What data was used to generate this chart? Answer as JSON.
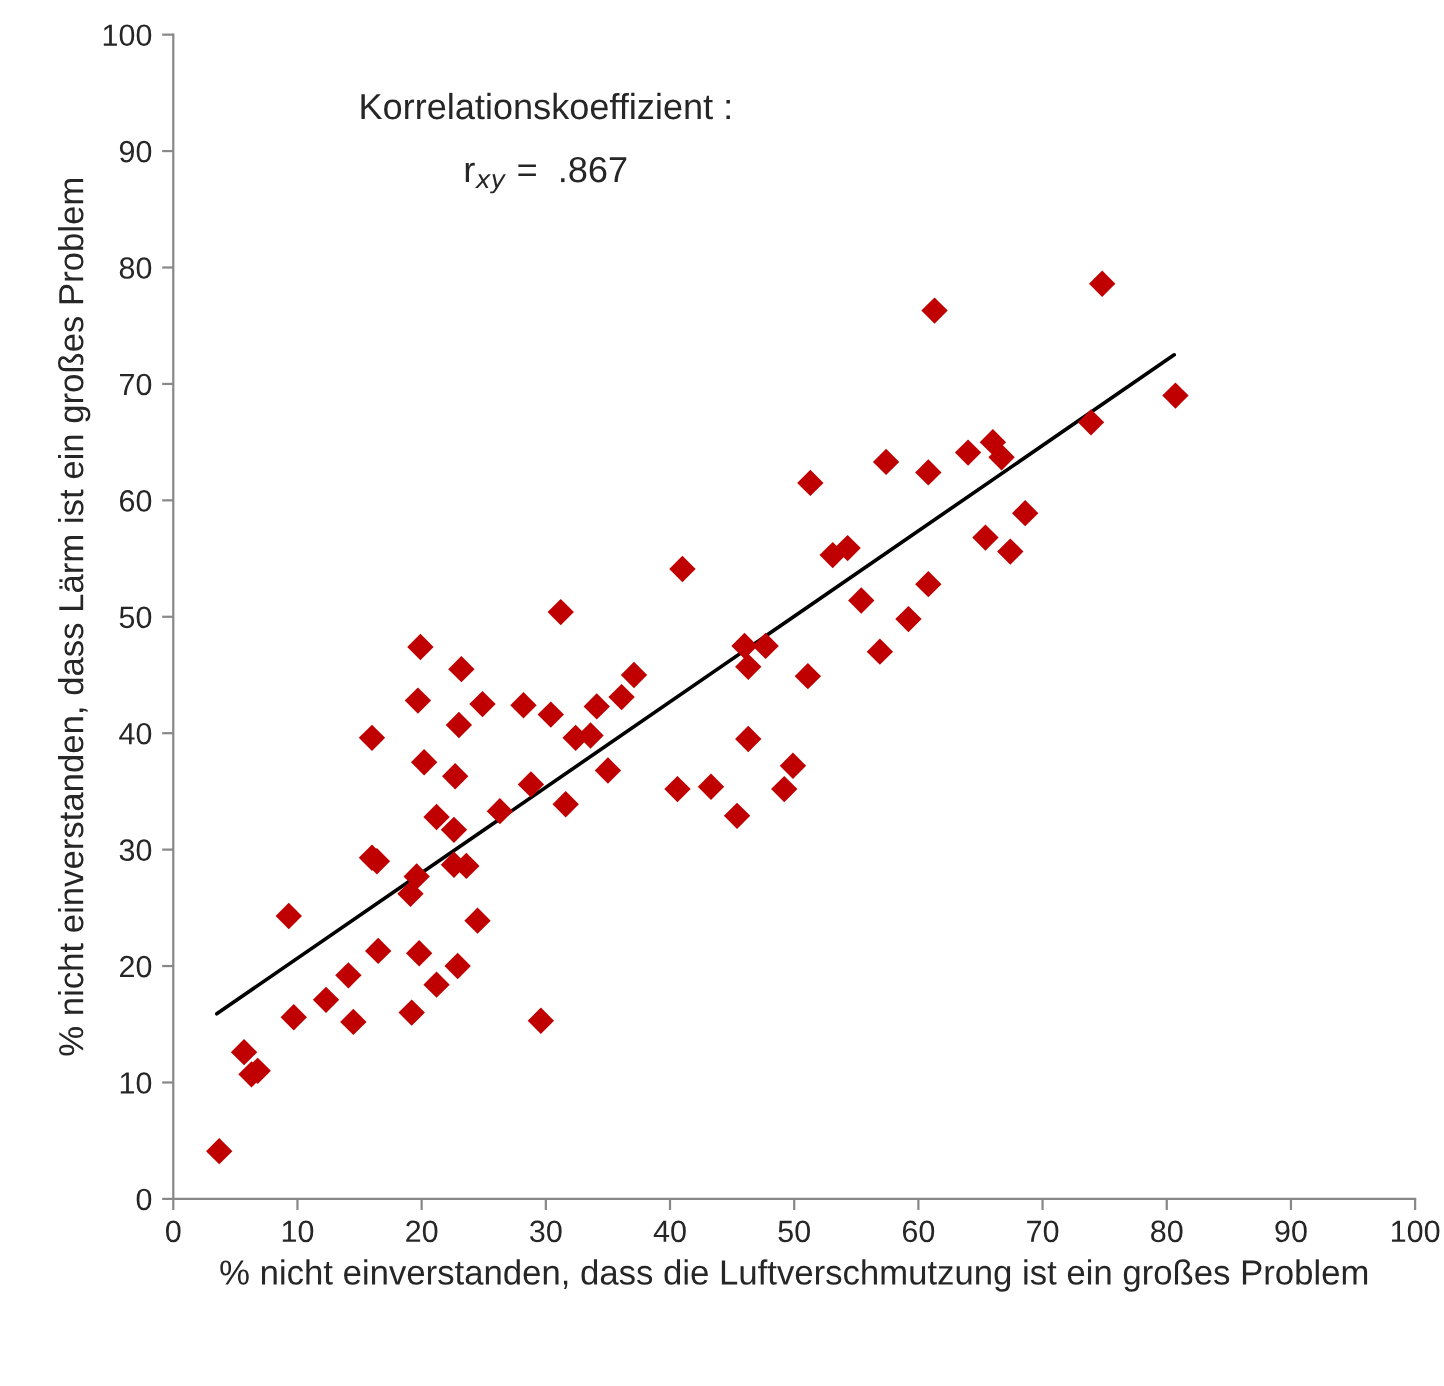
{
  "chart_data": {
    "type": "scatter",
    "xlabel": "% nicht einverstanden, dass die Luftverschmutzung ist ein großes Problem",
    "ylabel": "% nicht einverstanden, dass Lärm ist ein großes Problem",
    "annotations": [
      "Korrelationskoeffizient :",
      "r$_{xy}$ =  .867"
    ],
    "xlim": [
      0,
      100
    ],
    "ylim": [
      0,
      100
    ],
    "xticks": [
      0,
      10,
      20,
      30,
      40,
      50,
      60,
      70,
      80,
      90,
      100
    ],
    "yticks": [
      0,
      10,
      20,
      30,
      40,
      50,
      60,
      70,
      80,
      90,
      100
    ],
    "grid": false,
    "series": [
      {
        "marker": "diamond",
        "color": "#c00000",
        "x": [
          3.7,
          5.7,
          6.3,
          6.8,
          9.7,
          9.3,
          12.3,
          14.5,
          14.1,
          16.5,
          16.0,
          16.4,
          16.0,
          19.2,
          19.8,
          19.1,
          19.6,
          19.7,
          19.9,
          20.2,
          21.2,
          21.2,
          22.6,
          22.9,
          22.6,
          23.6,
          22.7,
          23.0,
          23.2,
          24.5,
          24.9,
          26.3,
          28.8,
          28.2,
          29.6,
          30.4,
          31.6,
          31.2,
          34.1,
          35.0,
          32.4,
          33.6,
          36.1,
          37.1,
          41.0,
          51.3,
          53.1,
          54.3,
          55.4,
          46.0,
          47.7,
          46.3,
          51.1,
          46.3,
          61.3,
          80.7,
          73.9,
          64.0,
          66.0,
          66.7,
          57.4,
          60.8,
          68.6,
          65.4,
          67.4,
          60.8,
          59.2,
          56.9,
          49.9,
          49.2,
          40.6,
          43.3,
          45.4,
          74.8
        ],
        "values": [
          4.1,
          12.6,
          10.7,
          11.0,
          15.6,
          24.3,
          17.1,
          15.2,
          19.2,
          21.3,
          29.3,
          29.0,
          39.6,
          16.0,
          21.1,
          26.2,
          27.7,
          42.8,
          47.4,
          37.5,
          18.4,
          32.8,
          31.7,
          20.0,
          28.7,
          28.6,
          36.3,
          40.7,
          45.5,
          23.9,
          42.5,
          33.3,
          35.6,
          42.4,
          15.3,
          41.6,
          33.9,
          50.4,
          42.3,
          36.8,
          39.6,
          39.8,
          43.1,
          45.0,
          54.1,
          61.5,
          55.3,
          55.9,
          51.4,
          47.5,
          47.5,
          45.7,
          44.9,
          39.5,
          76.3,
          69.0,
          66.7,
          64.1,
          65.0,
          63.7,
          63.3,
          62.4,
          58.9,
          56.8,
          55.6,
          52.8,
          49.8,
          47.0,
          37.2,
          35.2,
          35.2,
          35.4,
          32.9,
          78.6
        ]
      },
      {
        "type": "line",
        "color": "#000000",
        "x": [
          3.5,
          80.6
        ],
        "values": [
          15.9,
          72.5
        ]
      }
    ]
  }
}
